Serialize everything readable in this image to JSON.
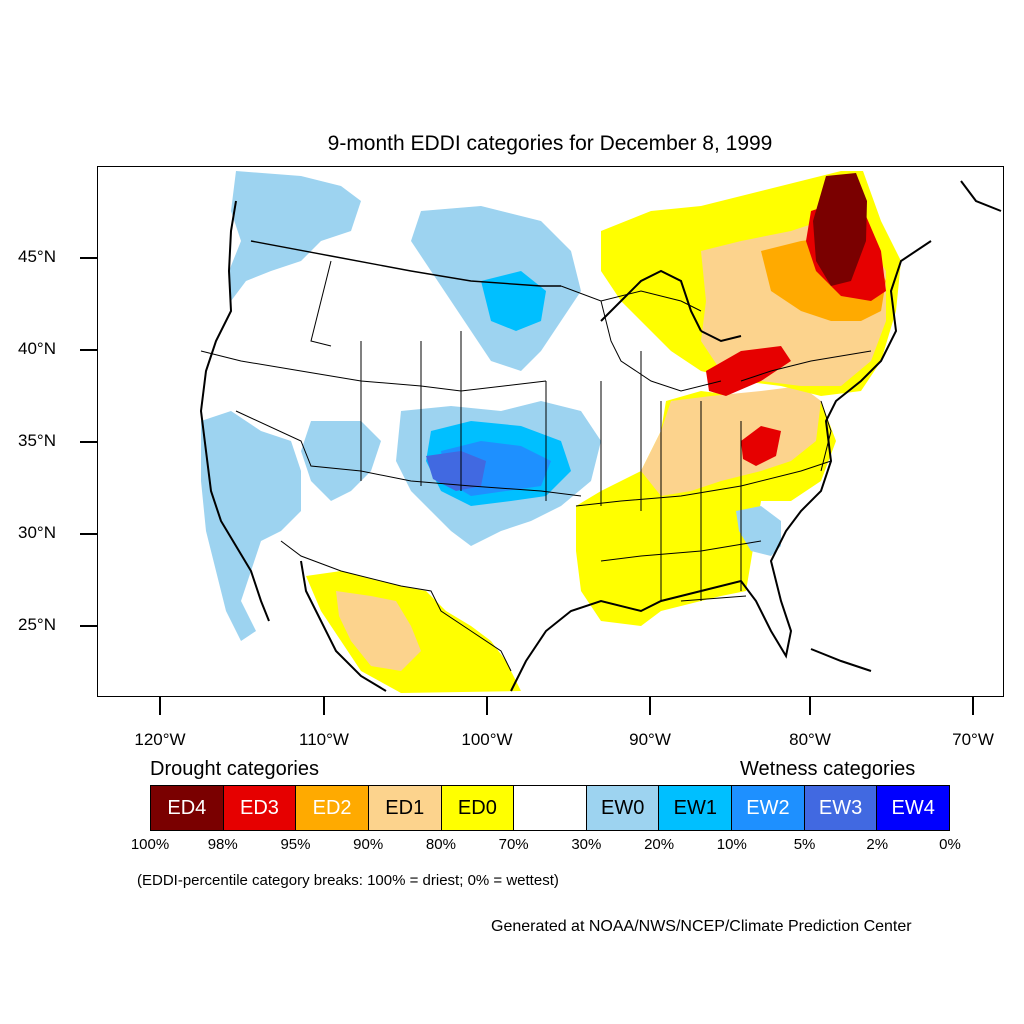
{
  "title": "9-month EDDI categories for December 8, 1999",
  "lat_labels": [
    "45°N",
    "40°N",
    "35°N",
    "30°N",
    "25°N"
  ],
  "lon_labels": [
    "120°W",
    "110°W",
    "100°W",
    "90°W",
    "80°W",
    "70°W"
  ],
  "legend": {
    "drought_heading": "Drought categories",
    "wetness_heading": "Wetness categories",
    "categories": [
      {
        "label": "ED4",
        "color": "#7a0000",
        "text_color": "#ffffff"
      },
      {
        "label": "ED3",
        "color": "#e60000",
        "text_color": "#ffffff"
      },
      {
        "label": "ED2",
        "color": "#ffaa00",
        "text_color": "#ffffff"
      },
      {
        "label": "ED1",
        "color": "#fcd38d",
        "text_color": "#000000"
      },
      {
        "label": "ED0",
        "color": "#ffff00",
        "text_color": "#000000"
      },
      {
        "label": "",
        "color": "#ffffff",
        "text_color": "#000000"
      },
      {
        "label": "EW0",
        "color": "#9dd3f0",
        "text_color": "#000000"
      },
      {
        "label": "EW1",
        "color": "#00bfff",
        "text_color": "#000000"
      },
      {
        "label": "EW2",
        "color": "#1e90ff",
        "text_color": "#ffffff"
      },
      {
        "label": "EW3",
        "color": "#4169e1",
        "text_color": "#ffffff"
      },
      {
        "label": "EW4",
        "color": "#0000ff",
        "text_color": "#ffffff"
      }
    ],
    "percent_breaks": [
      "100%",
      "98%",
      "95%",
      "90%",
      "80%",
      "70%",
      "30%",
      "20%",
      "10%",
      "5%",
      "2%",
      "0%"
    ]
  },
  "note": "(EDDI-percentile category breaks: 100% = driest; 0% = wettest)",
  "credit": "Generated at NOAA/NWS/NCEP/Climate Prediction Center"
}
